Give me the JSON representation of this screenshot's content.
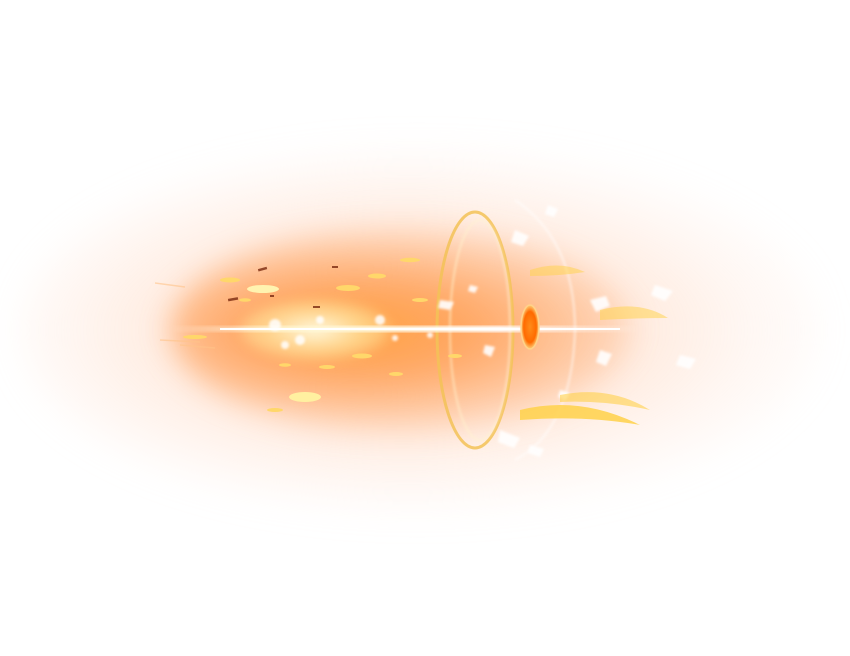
{
  "scene": {
    "subject": "orange-energy-blast",
    "colors": {
      "background": "#ffffff",
      "glow": "#ffb47a",
      "core": "#ffa03c",
      "hot": "#fffbe6",
      "ring": "#f3c257",
      "disc": "#ff7a00",
      "sparks": "#ffd76a",
      "streak": "#ffffff"
    }
  }
}
